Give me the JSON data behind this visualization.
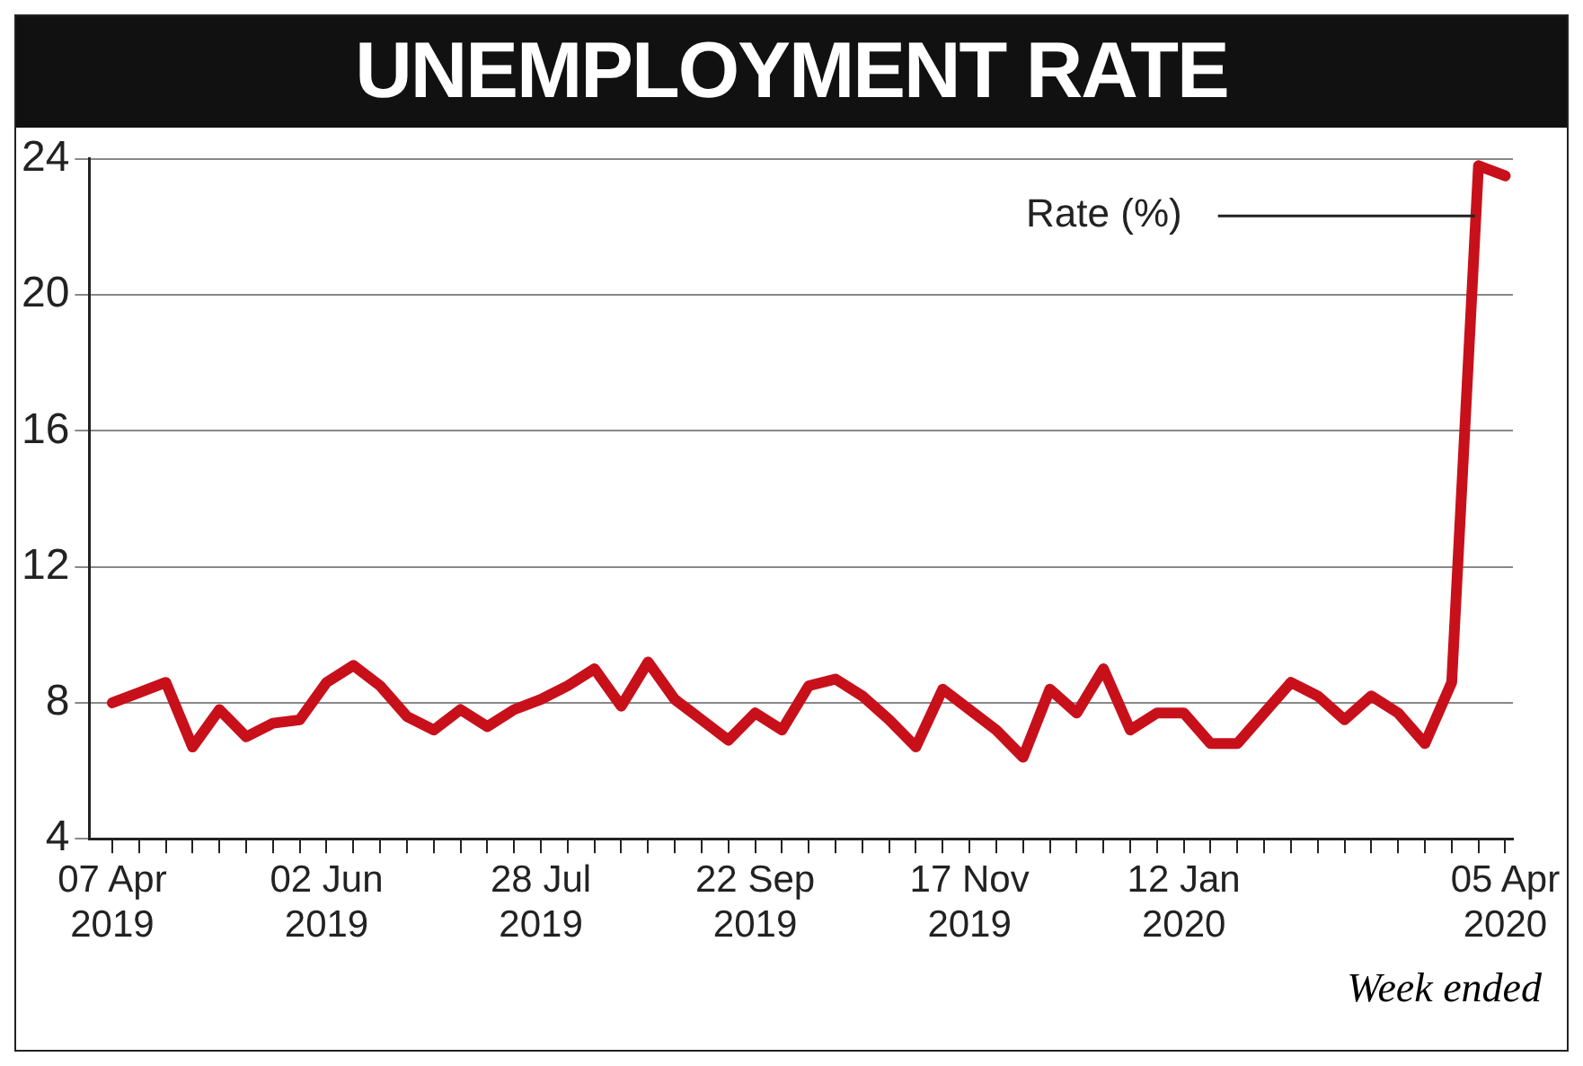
{
  "chart_data": {
    "type": "line",
    "title": "UNEMPLOYMENT RATE",
    "x": [
      "2019-04-07",
      "2019-04-14",
      "2019-04-21",
      "2019-04-28",
      "2019-05-05",
      "2019-05-12",
      "2019-05-19",
      "2019-05-26",
      "2019-06-02",
      "2019-06-09",
      "2019-06-16",
      "2019-06-23",
      "2019-06-30",
      "2019-07-07",
      "2019-07-14",
      "2019-07-21",
      "2019-07-28",
      "2019-08-04",
      "2019-08-11",
      "2019-08-18",
      "2019-08-25",
      "2019-09-01",
      "2019-09-08",
      "2019-09-15",
      "2019-09-22",
      "2019-09-29",
      "2019-10-06",
      "2019-10-13",
      "2019-10-20",
      "2019-10-27",
      "2019-11-03",
      "2019-11-10",
      "2019-11-17",
      "2019-11-24",
      "2019-12-01",
      "2019-12-08",
      "2019-12-15",
      "2019-12-22",
      "2019-12-29",
      "2020-01-05",
      "2020-01-12",
      "2020-01-19",
      "2020-01-26",
      "2020-02-02",
      "2020-02-09",
      "2020-02-16",
      "2020-02-23",
      "2020-03-01",
      "2020-03-08",
      "2020-03-15",
      "2020-03-22",
      "2020-03-29",
      "2020-04-05"
    ],
    "series": [
      {
        "name": "Rate (%)",
        "color": "#c8101a",
        "values": [
          8.0,
          8.3,
          8.6,
          6.7,
          7.8,
          7.0,
          7.4,
          7.5,
          8.6,
          9.1,
          8.5,
          7.6,
          7.2,
          7.8,
          7.3,
          7.8,
          8.1,
          8.5,
          9.0,
          7.9,
          9.2,
          8.1,
          7.5,
          6.9,
          7.7,
          7.2,
          8.5,
          8.7,
          8.2,
          7.5,
          6.7,
          8.4,
          7.8,
          7.2,
          6.4,
          8.4,
          7.7,
          9.0,
          7.2,
          7.7,
          7.7,
          6.8,
          6.8,
          7.7,
          8.6,
          8.2,
          7.5,
          8.2,
          7.7,
          6.8,
          8.6,
          23.8,
          23.5
        ]
      }
    ],
    "xlim": [
      "2019-04-01",
      "2020-04-07"
    ],
    "xticks": [
      {
        "value": "2019-04-07",
        "label": "07 Apr 2019"
      },
      {
        "value": "2019-04-14",
        "label": null
      },
      {
        "value": "2019-04-21",
        "label": null
      },
      {
        "value": "2019-04-28",
        "label": null
      },
      {
        "value": "2019-05-05",
        "label": null
      },
      {
        "value": "2019-05-12",
        "label": null
      },
      {
        "value": "2019-05-19",
        "label": null
      },
      {
        "value": "2019-05-26",
        "label": null
      },
      {
        "value": "2019-06-02",
        "label": "02 Jun 2019"
      },
      {
        "value": "2019-06-09",
        "label": null
      },
      {
        "value": "2019-06-16",
        "label": null
      },
      {
        "value": "2019-06-23",
        "label": null
      },
      {
        "value": "2019-06-30",
        "label": null
      },
      {
        "value": "2019-07-07",
        "label": null
      },
      {
        "value": "2019-07-14",
        "label": null
      },
      {
        "value": "2019-07-21",
        "label": null
      },
      {
        "value": "2019-07-28",
        "label": "28 Jul 2019"
      },
      {
        "value": "2019-08-04",
        "label": null
      },
      {
        "value": "2019-08-11",
        "label": null
      },
      {
        "value": "2019-08-18",
        "label": null
      },
      {
        "value": "2019-08-25",
        "label": null
      },
      {
        "value": "2019-09-01",
        "label": null
      },
      {
        "value": "2019-09-08",
        "label": null
      },
      {
        "value": "2019-09-15",
        "label": null
      },
      {
        "value": "2019-09-22",
        "label": "22 Sep 2019"
      },
      {
        "value": "2019-09-29",
        "label": null
      },
      {
        "value": "2019-10-06",
        "label": null
      },
      {
        "value": "2019-10-13",
        "label": null
      },
      {
        "value": "2019-10-20",
        "label": null
      },
      {
        "value": "2019-10-27",
        "label": null
      },
      {
        "value": "2019-11-03",
        "label": null
      },
      {
        "value": "2019-11-10",
        "label": null
      },
      {
        "value": "2019-11-17",
        "label": "17 Nov 2019"
      },
      {
        "value": "2019-11-24",
        "label": null
      },
      {
        "value": "2019-12-01",
        "label": null
      },
      {
        "value": "2019-12-08",
        "label": null
      },
      {
        "value": "2019-12-15",
        "label": null
      },
      {
        "value": "2019-12-22",
        "label": null
      },
      {
        "value": "2019-12-29",
        "label": null
      },
      {
        "value": "2020-01-05",
        "label": null
      },
      {
        "value": "2020-01-12",
        "label": "12 Jan 2020"
      },
      {
        "value": "2020-01-19",
        "label": null
      },
      {
        "value": "2020-01-26",
        "label": null
      },
      {
        "value": "2020-02-02",
        "label": null
      },
      {
        "value": "2020-02-09",
        "label": null
      },
      {
        "value": "2020-02-16",
        "label": null
      },
      {
        "value": "2020-02-23",
        "label": null
      },
      {
        "value": "2020-03-01",
        "label": null
      },
      {
        "value": "2020-03-08",
        "label": null
      },
      {
        "value": "2020-03-15",
        "label": null
      },
      {
        "value": "2020-03-22",
        "label": null
      },
      {
        "value": "2020-03-29",
        "label": null
      },
      {
        "value": "2020-04-05",
        "label": "05 Apr 2020"
      }
    ],
    "ylim": [
      4,
      24
    ],
    "yticks": [
      4,
      8,
      12,
      16,
      20,
      24
    ],
    "grid": "y",
    "legend": false,
    "marker": "none",
    "line_style": "solid",
    "annotations": [
      "Week ended"
    ]
  }
}
